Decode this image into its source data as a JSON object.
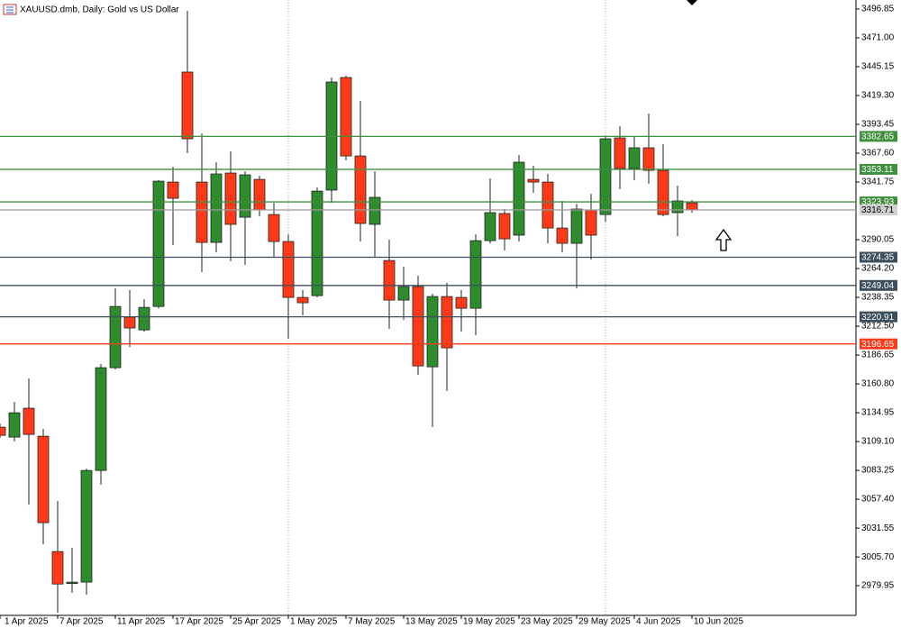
{
  "chart_data": {
    "type": "candlestick",
    "title": "XAUUSD.dmb, Daily:  Gold vs US Dollar",
    "categories": [
      "1 Apr 2025",
      null,
      null,
      null,
      "7 Apr 2025",
      null,
      null,
      null,
      "11 Apr 2025",
      null,
      null,
      null,
      "17 Apr 2025",
      null,
      null,
      null,
      "25 Apr 2025",
      null,
      null,
      null,
      "1 May 2025",
      null,
      null,
      null,
      "7 May 2025",
      null,
      null,
      null,
      "13 May 2025",
      null,
      null,
      null,
      "19 May 2025",
      null,
      null,
      null,
      "23 May 2025",
      null,
      null,
      null,
      "29 May 2025",
      null,
      null,
      null,
      "4 Jun 2025",
      null,
      null,
      null,
      "10 Jun 2025"
    ],
    "open": [
      3122.0,
      3113.1,
      3139.0,
      3113.9,
      3010.5,
      2981.9,
      2983.1,
      3083.2,
      3175.3,
      3220.6,
      3209.2,
      3230.2,
      3341.7,
      3440.3,
      3341.7,
      3287.6,
      3349.8,
      3310.2,
      3344.1,
      3312.6,
      3288.4,
      3238.3,
      3239.9,
      3334.5,
      3435.4,
      3365.1,
      3303.8,
      3271.4,
      3235.9,
      3248.0,
      3176.1,
      3239.1,
      3238.3,
      3228.6,
      3289.2,
      3313.5,
      3294.1,
      3344.1,
      3341.7,
      3300.5,
      3286.8,
      3316.7,
      3312.6,
      3381.3,
      3353.8,
      3372.4,
      3352.2,
      3314.3,
      3323.1
    ],
    "high": [
      3125.2,
      3144.6,
      3165.6,
      3120.4,
      3055.8,
      3013.8,
      3084.8,
      3178.5,
      3246.4,
      3244.8,
      3236.7,
      3343.3,
      3355.5,
      3495.2,
      3385.3,
      3359.5,
      3369.2,
      3351.4,
      3347.4,
      3323.1,
      3294.9,
      3244.8,
      3336.9,
      3435.4,
      3437.0,
      3414.4,
      3351.4,
      3290.0,
      3265.8,
      3257.7,
      3241.6,
      3251.3,
      3244.8,
      3294.9,
      3345.0,
      3317.5,
      3366.0,
      3356.3,
      3349.0,
      3324.8,
      3322.3,
      3331.2,
      3382.1,
      3391.8,
      3382.1,
      3403.1,
      3375.7,
      3338.5,
      3325.6
    ],
    "low": [
      3112.3,
      3109.1,
      3052.5,
      3017.0,
      2955.6,
      2973.4,
      2971.8,
      3070.3,
      3173.7,
      3193.9,
      3207.6,
      3228.6,
      3285.2,
      3367.6,
      3260.9,
      3278.7,
      3270.6,
      3267.4,
      3311.0,
      3274.7,
      3201.2,
      3222.2,
      3238.3,
      3323.1,
      3361.1,
      3288.4,
      3274.7,
      3210.1,
      3218.1,
      3168.9,
      3122.0,
      3154.3,
      3207.6,
      3204.4,
      3286.8,
      3280.3,
      3288.4,
      3332.0,
      3286.8,
      3278.7,
      3246.4,
      3272.3,
      3306.2,
      3335.3,
      3343.3,
      3340.1,
      3311.0,
      3293.3,
      3314.3
    ],
    "close": [
      3114.7,
      3134.9,
      3115.5,
      3036.4,
      2981.4,
      2983.1,
      3083.2,
      3175.3,
      3230.2,
      3210.9,
      3229.4,
      3342.5,
      3327.2,
      3380.5,
      3287.6,
      3349.0,
      3303.8,
      3348.2,
      3316.7,
      3288.4,
      3238.3,
      3233.5,
      3333.6,
      3431.4,
      3365.1,
      3304.6,
      3328.0,
      3235.9,
      3248.0,
      3176.9,
      3239.1,
      3193.1,
      3228.6,
      3289.2,
      3314.3,
      3290.8,
      3359.5,
      3341.7,
      3300.5,
      3286.8,
      3317.5,
      3294.1,
      3380.5,
      3353.8,
      3372.4,
      3352.2,
      3312.6,
      3324.8,
      3316.71
    ],
    "up_color": "#2e8b2e",
    "down_color": "#ff3a1a",
    "levels": [
      {
        "value": 3382.65,
        "color": "#3f8f3f"
      },
      {
        "value": 3353.11,
        "color": "#3f8f3f"
      },
      {
        "value": 3323.93,
        "color": "#3f8f3f"
      },
      {
        "value": 3316.71,
        "color": "#9a9a9a"
      },
      {
        "value": 3274.35,
        "color": "#3d4f5c"
      },
      {
        "value": 3249.04,
        "color": "#3d4f5c"
      },
      {
        "value": 3220.91,
        "color": "#3d4f5c"
      },
      {
        "value": 3196.65,
        "color": "#ff3a1a"
      }
    ],
    "ylim": [
      2953.3,
      3504.9
    ],
    "yticks": [
      3496.85,
      {
        "value": 3471,
        "label": "3471.00"
      },
      3445.15,
      {
        "value": 3419.3,
        "label": "3419.30"
      },
      3393.45,
      {
        "value": 3367.6,
        "label": "3367.60"
      },
      3341.75,
      3290.05,
      {
        "value": 3264.2,
        "label": "3264.20"
      },
      3238.35,
      {
        "value": 3212.5,
        "label": "3212.50"
      },
      3186.65,
      {
        "value": 3160.8,
        "label": "3160.80"
      },
      3134.95,
      {
        "value": 3109.1,
        "label": "3109.10"
      },
      3083.25,
      {
        "value": 3057.4,
        "label": "3057.40"
      },
      3031.55,
      {
        "value": 3005.7,
        "label": "3005.70"
      },
      2979.95
    ]
  }
}
